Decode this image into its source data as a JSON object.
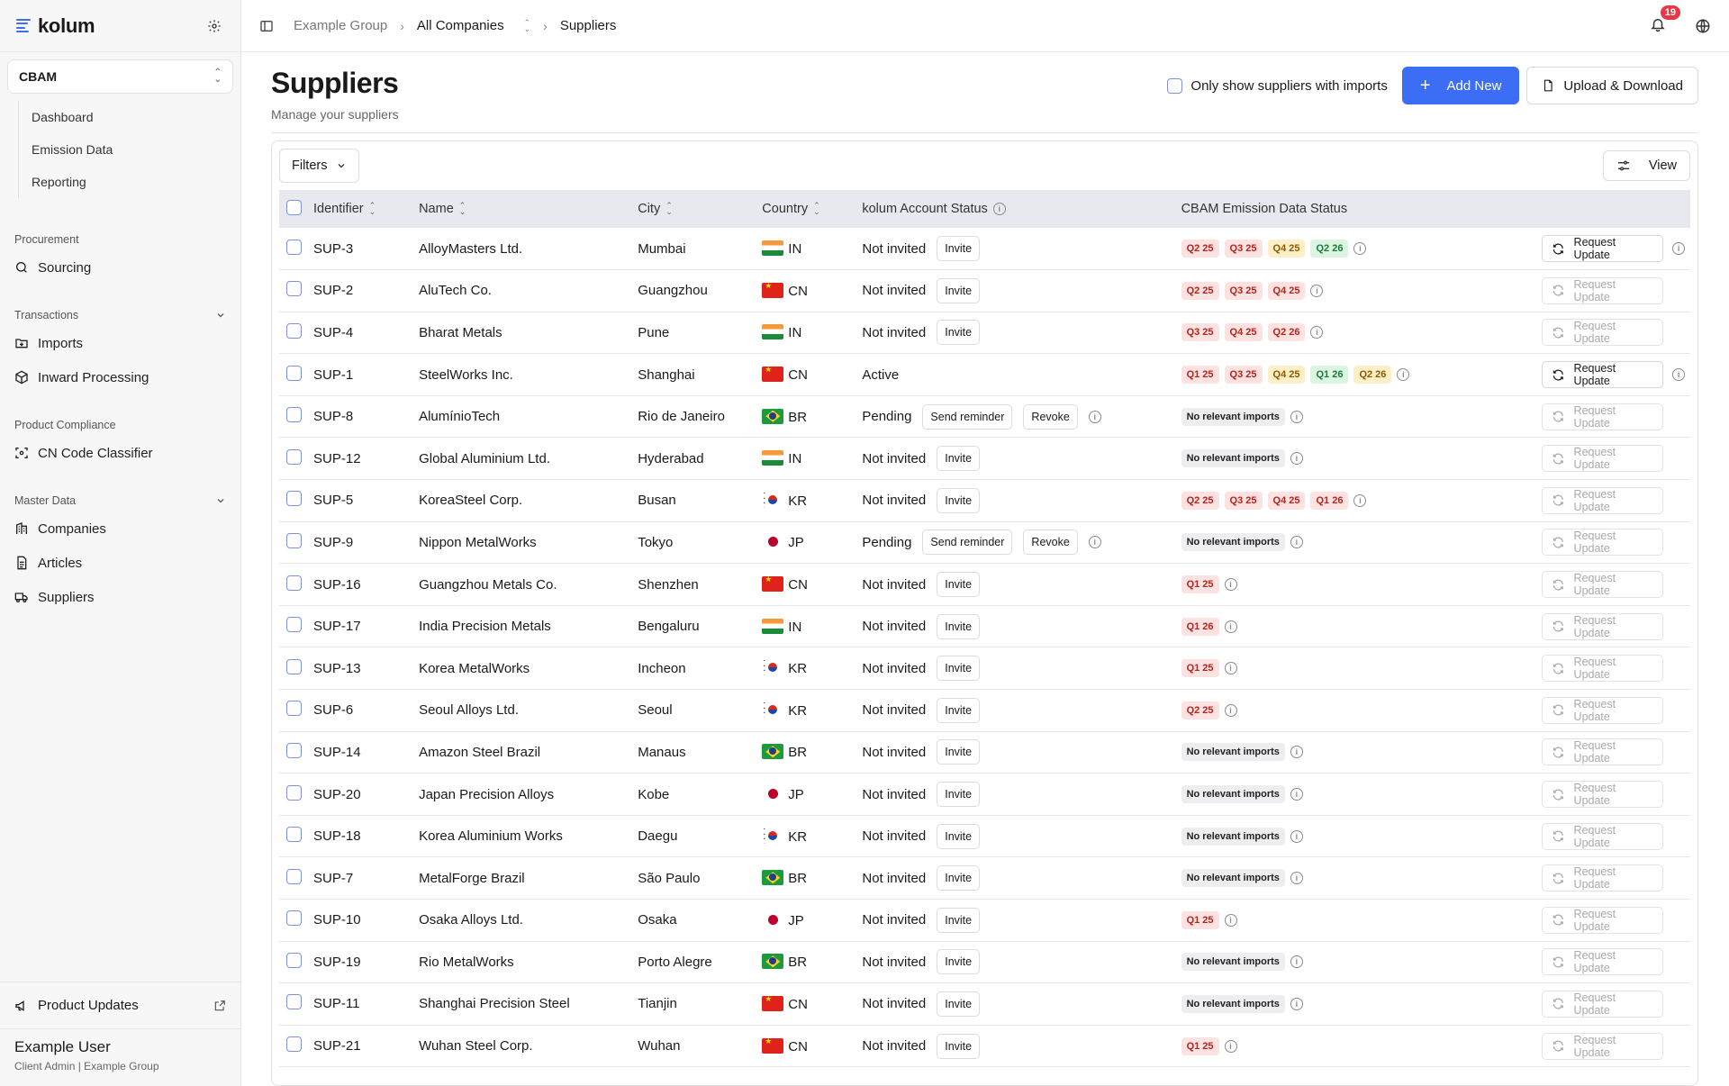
{
  "brand": {
    "name": "kolum"
  },
  "module": {
    "name": "CBAM"
  },
  "cbam_nav": [
    "Dashboard",
    "Emission Data",
    "Reporting"
  ],
  "sections": {
    "procurement": {
      "label": "Procurement",
      "items": [
        "Sourcing"
      ]
    },
    "transactions": {
      "label": "Transactions",
      "items": [
        "Imports",
        "Inward Processing"
      ]
    },
    "compliance": {
      "label": "Product Compliance",
      "items": [
        "CN Code Classifier"
      ]
    },
    "master": {
      "label": "Master Data",
      "items": [
        "Companies",
        "Articles",
        "Suppliers"
      ]
    }
  },
  "footer": {
    "product_updates": "Product Updates",
    "user_name": "Example User",
    "user_role": "Client Admin | Example Group"
  },
  "breadcrumb": {
    "group": "Example Group",
    "companies": "All Companies",
    "current": "Suppliers"
  },
  "notifications": {
    "count": "19"
  },
  "page": {
    "title": "Suppliers",
    "subtitle": "Manage your suppliers"
  },
  "actions": {
    "only_imports": "Only show suppliers with imports",
    "add_new": "Add New",
    "upload": "Upload & Download"
  },
  "toolbar": {
    "filters": "Filters",
    "view": "View"
  },
  "columns": {
    "identifier": "Identifier",
    "name": "Name",
    "city": "City",
    "country": "Country",
    "account": "kolum Account Status",
    "emission": "CBAM Emission Data Status"
  },
  "labels": {
    "invite": "Invite",
    "send_reminder": "Send reminder",
    "revoke": "Revoke",
    "request_update": "Request Update",
    "no_relevant": "No relevant imports"
  },
  "colors": {
    "accent": "#3b6ef5",
    "badge": "#e63946"
  },
  "rows": [
    {
      "id": "SUP-3",
      "name": "AlloyMasters Ltd.",
      "city": "Mumbai",
      "country": "IN",
      "status": "Not invited",
      "quarters": [
        [
          "Q2 25",
          "red"
        ],
        [
          "Q3 25",
          "red"
        ],
        [
          "Q4 25",
          "yellow"
        ],
        [
          "Q2 26",
          "green"
        ]
      ],
      "active_update": true
    },
    {
      "id": "SUP-2",
      "name": "AluTech Co.",
      "city": "Guangzhou",
      "country": "CN",
      "status": "Not invited",
      "quarters": [
        [
          "Q2 25",
          "red"
        ],
        [
          "Q3 25",
          "red"
        ],
        [
          "Q4 25",
          "red"
        ]
      ],
      "active_update": false
    },
    {
      "id": "SUP-4",
      "name": "Bharat Metals",
      "city": "Pune",
      "country": "IN",
      "status": "Not invited",
      "quarters": [
        [
          "Q3 25",
          "red"
        ],
        [
          "Q4 25",
          "red"
        ],
        [
          "Q2 26",
          "red"
        ]
      ],
      "active_update": false
    },
    {
      "id": "SUP-1",
      "name": "SteelWorks Inc.",
      "city": "Shanghai",
      "country": "CN",
      "status": "Active",
      "quarters": [
        [
          "Q1 25",
          "red"
        ],
        [
          "Q3 25",
          "red"
        ],
        [
          "Q4 25",
          "yellow"
        ],
        [
          "Q1 26",
          "green"
        ],
        [
          "Q2 26",
          "yellow"
        ]
      ],
      "active_update": true
    },
    {
      "id": "SUP-8",
      "name": "AlumínioTech",
      "city": "Rio de Janeiro",
      "country": "BR",
      "status": "Pending",
      "quarters": [],
      "active_update": false
    },
    {
      "id": "SUP-12",
      "name": "Global Aluminium Ltd.",
      "city": "Hyderabad",
      "country": "IN",
      "status": "Not invited",
      "quarters": [],
      "active_update": false
    },
    {
      "id": "SUP-5",
      "name": "KoreaSteel Corp.",
      "city": "Busan",
      "country": "KR",
      "status": "Not invited",
      "quarters": [
        [
          "Q2 25",
          "red"
        ],
        [
          "Q3 25",
          "red"
        ],
        [
          "Q4 25",
          "red"
        ],
        [
          "Q1 26",
          "red"
        ]
      ],
      "active_update": false
    },
    {
      "id": "SUP-9",
      "name": "Nippon MetalWorks",
      "city": "Tokyo",
      "country": "JP",
      "status": "Pending",
      "quarters": [],
      "active_update": false
    },
    {
      "id": "SUP-16",
      "name": "Guangzhou Metals Co.",
      "city": "Shenzhen",
      "country": "CN",
      "status": "Not invited",
      "quarters": [
        [
          "Q1 25",
          "red"
        ]
      ],
      "active_update": false
    },
    {
      "id": "SUP-17",
      "name": "India Precision Metals",
      "city": "Bengaluru",
      "country": "IN",
      "status": "Not invited",
      "quarters": [
        [
          "Q1 26",
          "red"
        ]
      ],
      "active_update": false
    },
    {
      "id": "SUP-13",
      "name": "Korea MetalWorks",
      "city": "Incheon",
      "country": "KR",
      "status": "Not invited",
      "quarters": [
        [
          "Q1 25",
          "red"
        ]
      ],
      "active_update": false
    },
    {
      "id": "SUP-6",
      "name": "Seoul Alloys Ltd.",
      "city": "Seoul",
      "country": "KR",
      "status": "Not invited",
      "quarters": [
        [
          "Q2 25",
          "red"
        ]
      ],
      "active_update": false
    },
    {
      "id": "SUP-14",
      "name": "Amazon Steel Brazil",
      "city": "Manaus",
      "country": "BR",
      "status": "Not invited",
      "quarters": [],
      "active_update": false
    },
    {
      "id": "SUP-20",
      "name": "Japan Precision Alloys",
      "city": "Kobe",
      "country": "JP",
      "status": "Not invited",
      "quarters": [],
      "active_update": false
    },
    {
      "id": "SUP-18",
      "name": "Korea Aluminium Works",
      "city": "Daegu",
      "country": "KR",
      "status": "Not invited",
      "quarters": [],
      "active_update": false
    },
    {
      "id": "SUP-7",
      "name": "MetalForge Brazil",
      "city": "São Paulo",
      "country": "BR",
      "status": "Not invited",
      "quarters": [],
      "active_update": false
    },
    {
      "id": "SUP-10",
      "name": "Osaka Alloys Ltd.",
      "city": "Osaka",
      "country": "JP",
      "status": "Not invited",
      "quarters": [
        [
          "Q1 25",
          "red"
        ]
      ],
      "active_update": false
    },
    {
      "id": "SUP-19",
      "name": "Rio MetalWorks",
      "city": "Porto Alegre",
      "country": "BR",
      "status": "Not invited",
      "quarters": [],
      "active_update": false
    },
    {
      "id": "SUP-11",
      "name": "Shanghai Precision Steel",
      "city": "Tianjin",
      "country": "CN",
      "status": "Not invited",
      "quarters": [],
      "active_update": false
    },
    {
      "id": "SUP-21",
      "name": "Wuhan Steel Corp.",
      "city": "Wuhan",
      "country": "CN",
      "status": "Not invited",
      "quarters": [
        [
          "Q1 25",
          "red"
        ]
      ],
      "active_update": false
    }
  ]
}
